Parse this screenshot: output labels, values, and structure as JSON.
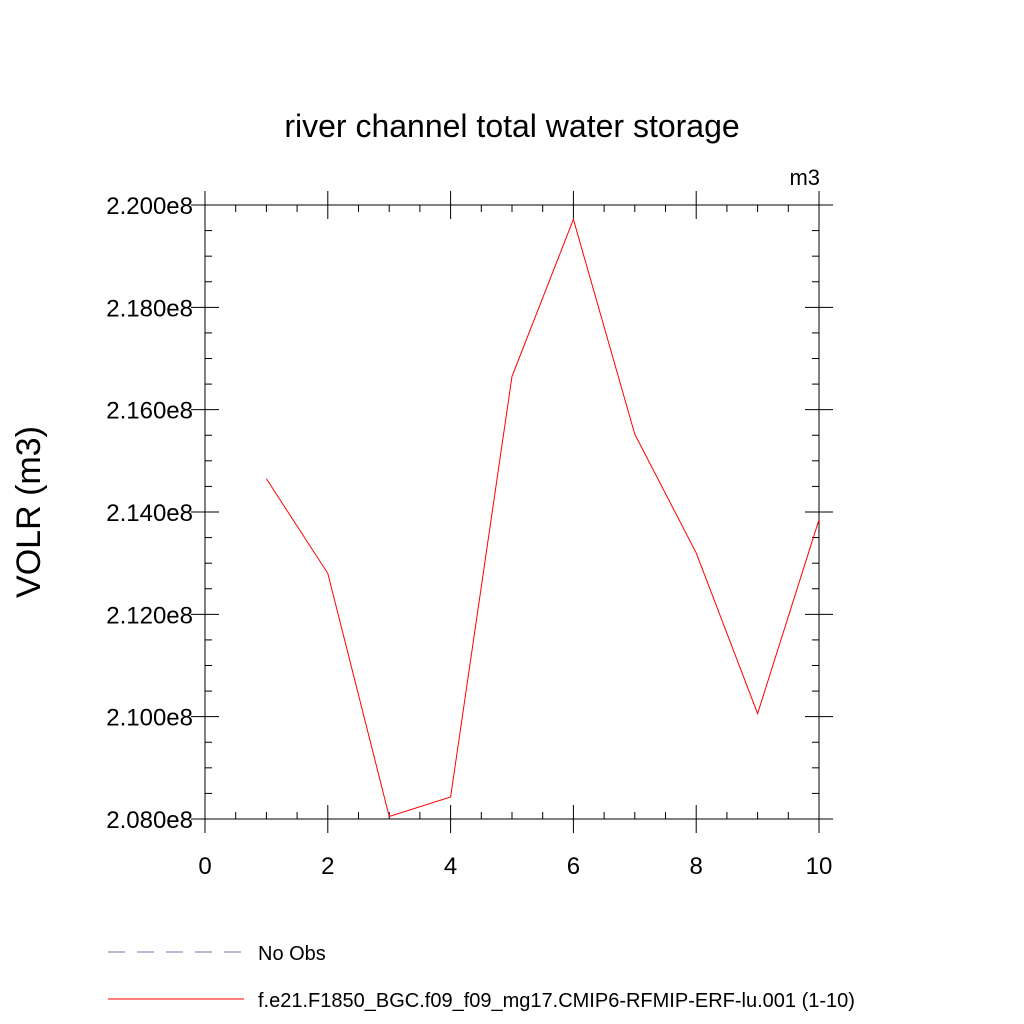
{
  "chart_data": {
    "type": "line",
    "title": "river channel total water storage",
    "units": "m3",
    "ylabel": "VOLR  (m3)",
    "xlabel": "",
    "xlim": [
      0,
      10
    ],
    "ylim": [
      208000000,
      220000000
    ],
    "x_ticks": [
      0,
      2,
      4,
      6,
      8,
      10
    ],
    "x_tick_labels": [
      "0",
      "2",
      "4",
      "6",
      "8",
      "10"
    ],
    "y_ticks": [
      208000000,
      210000000,
      212000000,
      214000000,
      216000000,
      218000000,
      220000000
    ],
    "y_tick_labels": [
      "2.080e8",
      "2.100e8",
      "2.120e8",
      "2.140e8",
      "2.160e8",
      "2.180e8",
      "2.200e8"
    ],
    "grid": false,
    "legend_position": "bottom",
    "series": [
      {
        "name": "f.e21.F1850_BGC.f09_f09_mg17.CMIP6-RFMIP-ERF-lu.001 (1-10)",
        "color": "#ff0000",
        "style": "solid",
        "x": [
          1,
          2,
          3,
          4,
          5,
          6,
          7,
          8,
          9,
          10
        ],
        "y": [
          214650000,
          212800000,
          208050000,
          208430000,
          216650000,
          219720000,
          215520000,
          213200000,
          210060000,
          213850000
        ]
      }
    ],
    "legend": [
      {
        "label": "No Obs",
        "color": "#7b6fb0",
        "style": "dashed"
      },
      {
        "label": "f.e21.F1850_BGC.f09_f09_mg17.CMIP6-RFMIP-ERF-lu.001 (1-10)",
        "color": "#ff0000",
        "style": "solid"
      }
    ]
  }
}
